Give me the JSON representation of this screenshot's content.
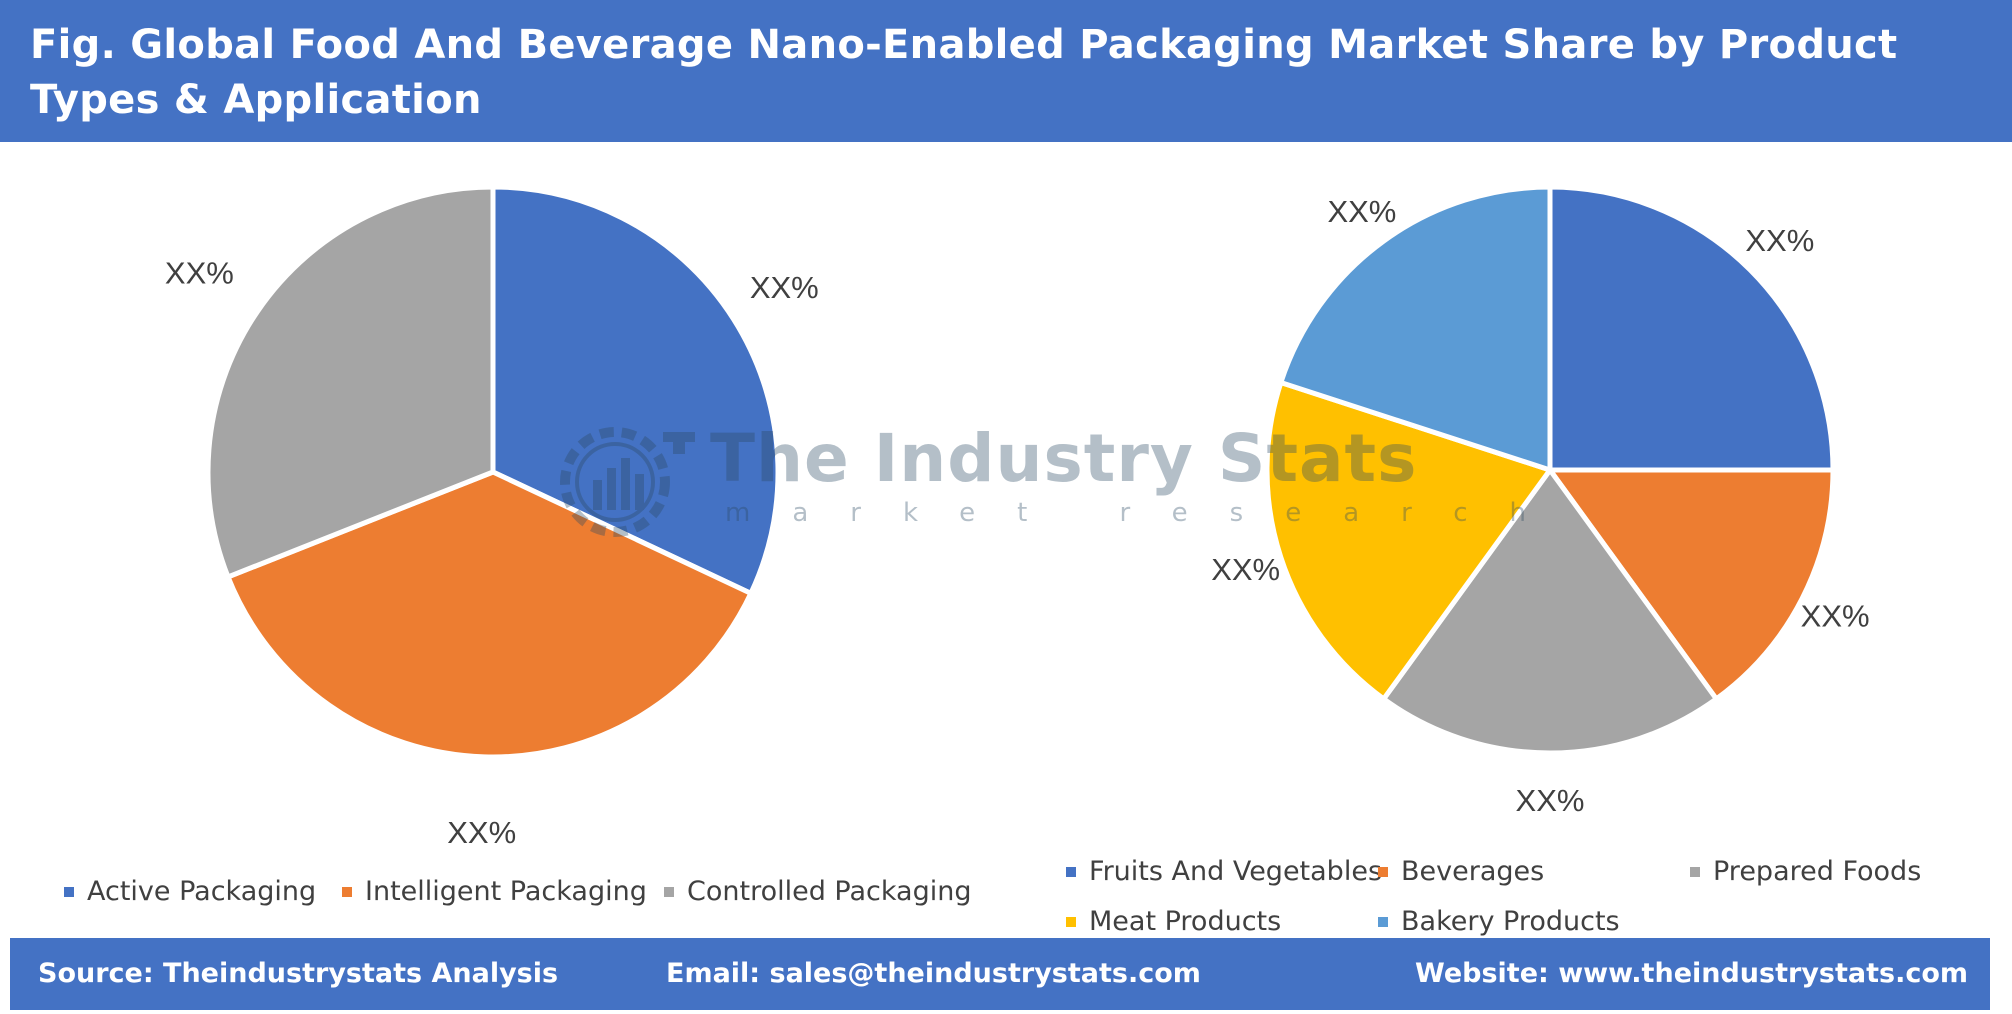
{
  "title": "Fig. Global Food And Beverage Nano-Enabled Packaging Market Share by Product Types & Application",
  "watermark": {
    "name": "The Industry Stats",
    "sub": "market research"
  },
  "colors": {
    "header": "#4472c4",
    "blue": "#4472c4",
    "orange": "#ed7d31",
    "gray": "#a5a5a5",
    "yellow": "#ffc000",
    "lightblue": "#5b9bd5"
  },
  "chart_data": [
    {
      "type": "pie",
      "categories": [
        "Active Packaging",
        "Intelligent Packaging",
        "Controlled Packaging"
      ],
      "values": [
        32,
        37,
        31
      ],
      "labels": [
        "XX%",
        "XX%",
        "XX%"
      ],
      "colors": [
        "#4472c4",
        "#ed7d31",
        "#a5a5a5"
      ],
      "legend": "bottom"
    },
    {
      "type": "pie",
      "categories": [
        "Fruits And Vegetables",
        "Beverages",
        "Prepared Foods",
        "Meat Products",
        "Bakery Products"
      ],
      "values": [
        25,
        15,
        20,
        20,
        20
      ],
      "labels": [
        "XX%",
        "XX%",
        "XX%",
        "XX%",
        "XX%"
      ],
      "colors": [
        "#4472c4",
        "#ed7d31",
        "#a5a5a5",
        "#ffc000",
        "#5b9bd5"
      ],
      "legend": "bottom"
    }
  ],
  "footer": {
    "source": "Source: Theindustrystats Analysis",
    "email": "Email: sales@theindustrystats.com",
    "website": "Website: www.theindustrystats.com"
  }
}
